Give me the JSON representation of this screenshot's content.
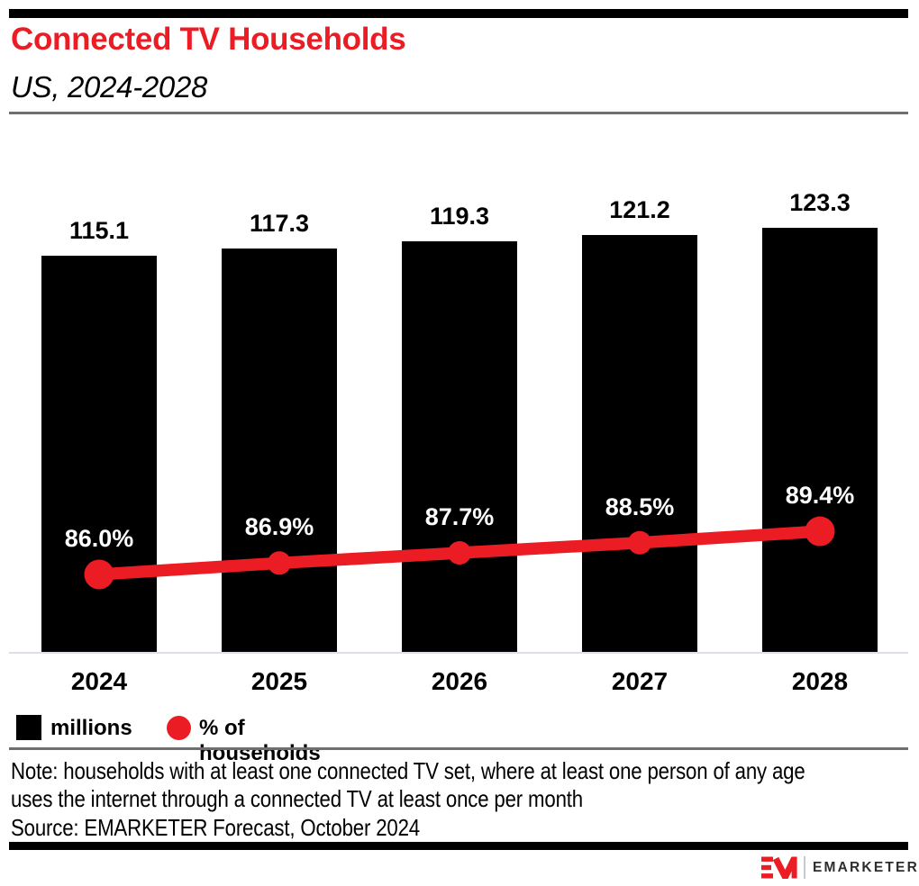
{
  "header": {
    "title": "Connected TV Households",
    "subtitle": "US, 2024-2028"
  },
  "chart_data": {
    "type": "bar",
    "combo": "bar+line",
    "title": "Connected TV Households",
    "subtitle": "US, 2024-2028",
    "categories": [
      "2024",
      "2025",
      "2026",
      "2027",
      "2028"
    ],
    "series": [
      {
        "name": "millions",
        "type": "bar",
        "color": "#000000",
        "values": [
          115.1,
          117.3,
          119.3,
          121.2,
          123.3
        ]
      },
      {
        "name": "% of households",
        "type": "line",
        "color": "#EC1C24",
        "values": [
          86.0,
          86.9,
          87.7,
          88.5,
          89.4
        ]
      }
    ],
    "bar_value_labels": [
      "115.1",
      "117.3",
      "119.3",
      "121.2",
      "123.3"
    ],
    "pct_value_labels": [
      "86.0%",
      "86.9%",
      "87.7%",
      "88.5%",
      "89.4%"
    ],
    "ylim": [
      0,
      123.3
    ],
    "grid": false,
    "legend_position": "bottom-left"
  },
  "legend": {
    "items": [
      {
        "label": "millions",
        "swatch": "square",
        "color": "#000000"
      },
      {
        "label": "% of households",
        "swatch": "circle",
        "color": "#EC1C24"
      }
    ]
  },
  "note_lines": [
    "Note: households with at least one connected TV set, where at least one person of any age",
    "uses the internet through a connected TV at least once per month"
  ],
  "source": "Source: EMARKETER Forecast, October 2024",
  "footer": {
    "brand": "EMARKETER",
    "monogram": "EM"
  },
  "colors": {
    "accent_red": "#EC1C24",
    "bar_black": "#000000",
    "axis_line": "#dbdfea",
    "divider_gray": "#6f6f6f",
    "brand_text": "#2e2e2e"
  }
}
